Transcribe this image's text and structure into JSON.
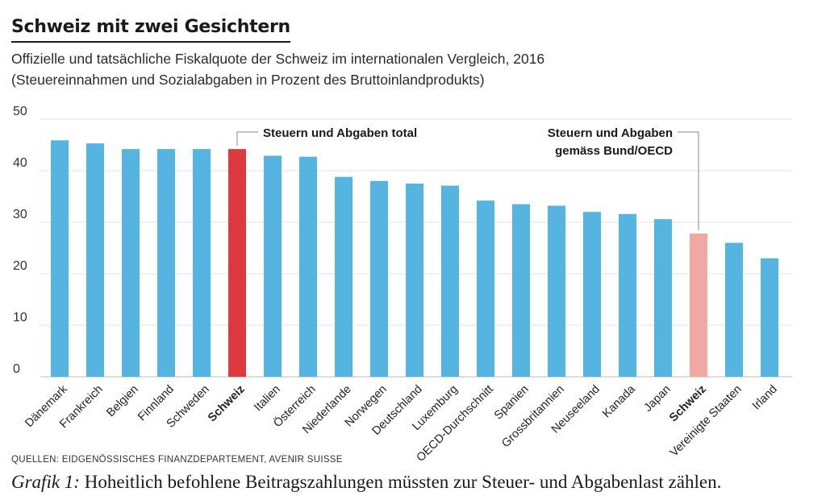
{
  "header": {
    "title": "Schweiz mit zwei Gesichtern",
    "subtitle_line1": "Offizielle und tatsächliche Fiskalquote der Schweiz im internationalen Vergleich, 2016",
    "subtitle_line2": "(Steuereinnahmen und Sozialabgaben in Prozent des Bruttoinlandprodukts)"
  },
  "chart_data": {
    "type": "bar",
    "title": "Schweiz mit zwei Gesichtern",
    "xlabel": "",
    "ylabel": "",
    "ylim": [
      0,
      50
    ],
    "yticks": [
      0,
      10,
      20,
      30,
      40,
      50
    ],
    "grid": true,
    "categories": [
      "Dänemark",
      "Frankreich",
      "Belgien",
      "Finnland",
      "Schweden",
      "Schweiz",
      "Italien",
      "Österreich",
      "Niederlande",
      "Norwegen",
      "Deutschland",
      "Luxemburg",
      "OECD-Durchschnitt",
      "Spanien",
      "Grossbritannien",
      "Neuseeland",
      "Kanada",
      "Japan",
      "Schweiz",
      "Vereinigte Staaten",
      "Irland"
    ],
    "values": [
      45.9,
      45.3,
      44.2,
      44.2,
      44.2,
      44.2,
      42.9,
      42.7,
      38.8,
      38.0,
      37.5,
      37.1,
      34.2,
      33.5,
      33.2,
      32.0,
      31.6,
      30.6,
      27.8,
      26.0,
      23.0
    ],
    "bar_colors": [
      "#56b4e0",
      "#56b4e0",
      "#56b4e0",
      "#56b4e0",
      "#56b4e0",
      "#dd3a3f",
      "#56b4e0",
      "#56b4e0",
      "#56b4e0",
      "#56b4e0",
      "#56b4e0",
      "#56b4e0",
      "#56b4e0",
      "#56b4e0",
      "#56b4e0",
      "#56b4e0",
      "#56b4e0",
      "#56b4e0",
      "#f0a9a2",
      "#56b4e0",
      "#56b4e0"
    ],
    "bold_labels": [
      5,
      18
    ],
    "annotations": [
      {
        "text_lines": [
          "Steuern und Abgaben total"
        ],
        "target_index": 5
      },
      {
        "text_lines": [
          "Steuern und Abgaben",
          "gemäss Bund/OECD"
        ],
        "target_index": 18
      }
    ],
    "colors": {
      "bar": "#56b4e0",
      "highlight": "#dd3a3f",
      "highlight_light": "#f0a9a2",
      "grid": "#e3e3e3",
      "axis": "#bbbbbb",
      "text": "#1a1a1a"
    }
  },
  "footer": {
    "source": "QUELLEN: EIDGENÖSSISCHES FINANZDEPARTEMENT, AVENIR SUISSE",
    "caption_lead": "Grafik 1:",
    "caption_text": " Hoheitlich befohlene Beitragszahlungen müssten zur Steuer- und Abgabenlast zählen."
  }
}
